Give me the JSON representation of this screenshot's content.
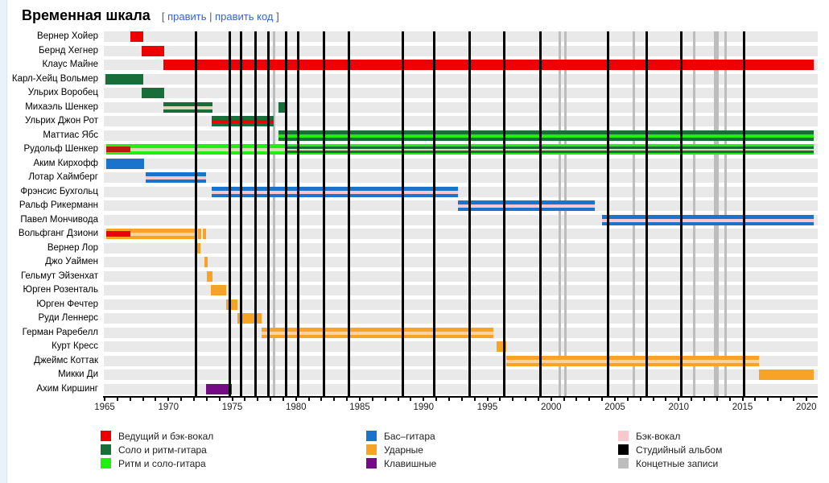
{
  "page": {
    "title": "Временная шкала",
    "edit": {
      "open": "[",
      "link1": "править",
      "sep": "|",
      "link2": "править код",
      "close": "]"
    }
  },
  "chart_data": {
    "type": "timeline",
    "title": "Временная шкала",
    "x_axis": {
      "start": 1965,
      "end": 2020,
      "minor_tick_step": 1,
      "labeled_tick_step": 5,
      "tick_labels": [
        "1965",
        "1970",
        "1975",
        "1980",
        "1985",
        "1990",
        "1995",
        "2000",
        "2005",
        "2010",
        "2015",
        "2020"
      ]
    },
    "colors": {
      "red": "#ee0000",
      "darkgreen": "#186e38",
      "brightgreen": "#22ee11",
      "blue": "#1b74cc",
      "orange": "#f7a328",
      "purple": "#750c85",
      "pink": "#f8c8ce",
      "black": "#000000",
      "gray": "#bdbdbd",
      "darkred": "#b71c0c",
      "tan": "#ddd8b8",
      "lightorange": "#fbd3a0",
      "row_band": "#e9e9e9"
    },
    "rows": [
      {
        "name": "Вернер Хойер",
        "segments": [
          {
            "from": 1967.0,
            "to": 1968.0,
            "color": "red"
          }
        ]
      },
      {
        "name": "Бернд Хегнер",
        "segments": [
          {
            "from": 1967.9,
            "to": 1969.65,
            "color": "red"
          }
        ]
      },
      {
        "name": "Клаус Майне",
        "segments": [
          {
            "from": 1969.6,
            "to": 2020.6,
            "color": "red"
          }
        ]
      },
      {
        "name": "Карл-Хейц Вольмер",
        "segments": [
          {
            "from": 1965.05,
            "to": 1968.0,
            "color": "darkgreen"
          }
        ]
      },
      {
        "name": "Ульрих Воробец",
        "segments": [
          {
            "from": 1967.9,
            "to": 1969.65,
            "color": "darkgreen"
          }
        ]
      },
      {
        "name": "Михаэль Шенкер",
        "segments": [
          {
            "from": 1969.6,
            "to": 1973.45,
            "color": "darkgreen",
            "stripes": [
              {
                "from": 1969.6,
                "to": 1973.45,
                "color": "tan",
                "h": 0.3
              }
            ]
          },
          {
            "from": 1978.6,
            "to": 1979.3,
            "color": "darkgreen"
          }
        ]
      },
      {
        "name": "Ульрих Джон Рот",
        "segments": [
          {
            "from": 1973.4,
            "to": 1978.25,
            "color": "darkgreen",
            "stripes": [
              {
                "from": 1973.4,
                "to": 1978.25,
                "color": "red",
                "h": 0.3
              }
            ]
          }
        ]
      },
      {
        "name": "Маттиас Ябс",
        "segments": [
          {
            "from": 1978.6,
            "to": 2020.6,
            "color": "darkgreen",
            "stripes": [
              {
                "from": 1978.6,
                "to": 2020.6,
                "color": "brightgreen",
                "h": 0.3
              }
            ]
          }
        ]
      },
      {
        "name": "Рудольф Шенкер",
        "segments": [
          {
            "from": 1965.1,
            "to": 2020.6,
            "color": "brightgreen",
            "stripes": [
              {
                "from": 1965.1,
                "to": 1967.05,
                "color": "darkred",
                "h": 0.5
              },
              {
                "from": 1967.05,
                "to": 1979.3,
                "color": "tan",
                "h": 0.3
              },
              {
                "from": 1979.3,
                "to": 2020.6,
                "color": "darkgreen",
                "h": 0.62
              },
              {
                "from": 1979.3,
                "to": 2020.6,
                "color": "tan",
                "h": 0.18
              }
            ]
          }
        ]
      },
      {
        "name": "Аким Кирхофф",
        "segments": [
          {
            "from": 1965.1,
            "to": 1968.1,
            "color": "blue"
          }
        ]
      },
      {
        "name": "Лотар Хаймберг",
        "segments": [
          {
            "from": 1968.2,
            "to": 1972.95,
            "color": "blue",
            "stripes": [
              {
                "from": 1968.2,
                "to": 1972.95,
                "color": "pink",
                "h": 0.3
              }
            ]
          }
        ]
      },
      {
        "name": "Фрэнсис Бухгольц",
        "segments": [
          {
            "from": 1973.4,
            "to": 1992.7,
            "color": "blue",
            "stripes": [
              {
                "from": 1973.4,
                "to": 1992.7,
                "color": "pink",
                "h": 0.3
              }
            ]
          }
        ]
      },
      {
        "name": "Ральф Рикерманн",
        "segments": [
          {
            "from": 1992.7,
            "to": 2003.4,
            "color": "blue",
            "stripes": [
              {
                "from": 1992.7,
                "to": 2003.4,
                "color": "pink",
                "h": 0.3
              }
            ]
          }
        ]
      },
      {
        "name": "Павел Мончивода",
        "segments": [
          {
            "from": 2004.0,
            "to": 2020.6,
            "color": "blue",
            "stripes": [
              {
                "from": 2004.0,
                "to": 2020.6,
                "color": "pink",
                "h": 0.3
              }
            ]
          }
        ]
      },
      {
        "name": "Вольфганг Дзиони",
        "segments": [
          {
            "from": 1965.1,
            "to": 1972.2,
            "color": "orange",
            "stripes": [
              {
                "from": 1965.1,
                "to": 1967.05,
                "color": "red",
                "h": 0.5
              },
              {
                "from": 1967.05,
                "to": 1972.2,
                "color": "lightorange",
                "h": 0.3
              }
            ]
          },
          {
            "from": 1972.3,
            "to": 1972.55,
            "color": "orange"
          },
          {
            "from": 1972.7,
            "to": 1972.95,
            "color": "orange"
          }
        ]
      },
      {
        "name": "Вернер Лор",
        "segments": [
          {
            "from": 1972.25,
            "to": 1972.5,
            "color": "orange"
          }
        ]
      },
      {
        "name": "Джо Уаймен",
        "segments": [
          {
            "from": 1972.8,
            "to": 1973.1,
            "color": "orange"
          }
        ]
      },
      {
        "name": "Гельмут Эйзенхат",
        "segments": [
          {
            "from": 1973.0,
            "to": 1973.45,
            "color": "orange"
          }
        ]
      },
      {
        "name": "Юрген Розенталь",
        "segments": [
          {
            "from": 1973.3,
            "to": 1974.5,
            "color": "orange"
          }
        ]
      },
      {
        "name": "Юрген Фечтер",
        "segments": [
          {
            "from": 1974.5,
            "to": 1975.4,
            "color": "orange"
          }
        ]
      },
      {
        "name": "Руди Леннерс",
        "segments": [
          {
            "from": 1975.4,
            "to": 1977.3,
            "color": "orange"
          }
        ]
      },
      {
        "name": "Герман Раребелл",
        "segments": [
          {
            "from": 1977.3,
            "to": 1995.5,
            "color": "orange",
            "stripes": [
              {
                "from": 1977.3,
                "to": 1995.5,
                "color": "lightorange",
                "h": 0.3
              }
            ]
          }
        ]
      },
      {
        "name": "Курт Кресс",
        "segments": [
          {
            "from": 1995.7,
            "to": 1996.5,
            "color": "orange"
          }
        ]
      },
      {
        "name": "Джеймс Коттак",
        "segments": [
          {
            "from": 1996.5,
            "to": 2016.3,
            "color": "orange",
            "stripes": [
              {
                "from": 1996.5,
                "to": 2016.3,
                "color": "lightorange",
                "h": 0.3
              }
            ]
          }
        ]
      },
      {
        "name": "Микки Ди",
        "segments": [
          {
            "from": 2016.3,
            "to": 2020.6,
            "color": "orange"
          }
        ]
      },
      {
        "name": "Ахим Киршинг",
        "segments": [
          {
            "from": 1972.95,
            "to": 1974.95,
            "color": "purple"
          }
        ]
      }
    ],
    "album_lines": {
      "studio": [
        1972.15,
        1974.8,
        1975.7,
        1976.8,
        1977.85,
        1979.2,
        1980.2,
        1982.2,
        1984.15,
        1988.35,
        1990.85,
        1993.6,
        1996.3,
        1999.15,
        2004.45,
        2007.5,
        2010.2,
        2015.15
      ],
      "live": [
        1978.3,
        2000.65,
        2001.15,
        2006.5,
        2011.2,
        2012.85,
        2013.05,
        2013.7
      ]
    },
    "legend": {
      "columns": [
        [
          {
            "color": "red",
            "label": "Ведущий и бэк-вокал"
          },
          {
            "color": "darkgreen",
            "label": "Соло и ритм-гитара"
          },
          {
            "color": "brightgreen",
            "label": "Ритм и соло-гитара"
          }
        ],
        [
          {
            "color": "blue",
            "label": "Бас–гитара"
          },
          {
            "color": "orange",
            "label": "Ударные"
          },
          {
            "color": "purple",
            "label": "Клавишные"
          }
        ],
        [
          {
            "color": "pink",
            "label": "Бэк-вокал"
          },
          {
            "color": "black",
            "label": "Студийный альбом"
          },
          {
            "color": "gray",
            "label": "Концетные записи"
          }
        ]
      ]
    }
  }
}
